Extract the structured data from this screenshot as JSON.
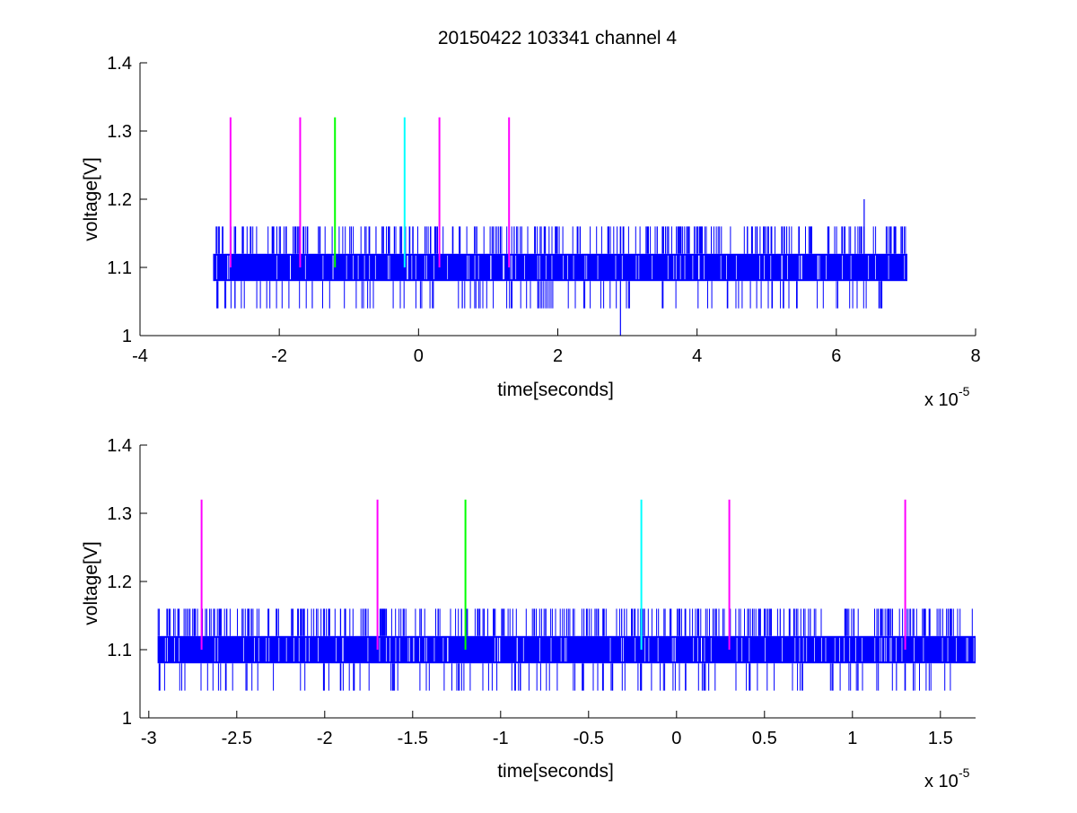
{
  "title": "20150422 103341 channel 4",
  "colors": {
    "signal": "#0000ff",
    "marker_magenta": "#ff00ff",
    "marker_green": "#00ff00",
    "marker_cyan": "#00ffff",
    "axis": "#000000"
  },
  "chart_data": [
    {
      "type": "line",
      "title": "20150422 103341 channel 4",
      "xlabel": "time[seconds]",
      "ylabel": "voltage[V]",
      "x_exponent_label": "x 10",
      "x_exponent": "-5",
      "xlim": [
        -4,
        8
      ],
      "ylim": [
        1,
        1.4
      ],
      "xticks": [
        -4,
        -2,
        0,
        2,
        4,
        6,
        8
      ],
      "xtick_labels": [
        "-4",
        "-2",
        "0",
        "2",
        "4",
        "6",
        "8"
      ],
      "yticks": [
        1,
        1.1,
        1.2,
        1.3,
        1.4
      ],
      "ytick_labels": [
        "1",
        "1.1",
        "1.2",
        "1.3",
        "1.4"
      ],
      "grid": false,
      "series": [
        {
          "color": "#0000ff",
          "x_range": [
            -2.95,
            7.02
          ],
          "levels": [
            1.04,
            1.08,
            1.12,
            1.16
          ],
          "dominant_band": [
            1.08,
            1.12
          ],
          "spikes": [
            {
              "x": 6.4,
              "y": 1.2
            },
            {
              "x": 2.9,
              "y": 1.0
            }
          ]
        }
      ],
      "markers": [
        {
          "x": -2.7,
          "y0": 1.1,
          "y1": 1.32,
          "color": "#ff00ff"
        },
        {
          "x": -1.7,
          "y0": 1.1,
          "y1": 1.32,
          "color": "#ff00ff"
        },
        {
          "x": -1.2,
          "y0": 1.1,
          "y1": 1.32,
          "color": "#00ff00"
        },
        {
          "x": -0.2,
          "y0": 1.1,
          "y1": 1.32,
          "color": "#00ffff"
        },
        {
          "x": 0.3,
          "y0": 1.1,
          "y1": 1.32,
          "color": "#ff00ff"
        },
        {
          "x": 1.3,
          "y0": 1.1,
          "y1": 1.32,
          "color": "#ff00ff"
        }
      ]
    },
    {
      "type": "line",
      "xlabel": "time[seconds]",
      "ylabel": "voltage[V]",
      "x_exponent_label": "x 10",
      "x_exponent": "-5",
      "xlim": [
        -3.05,
        1.7
      ],
      "ylim": [
        1,
        1.4
      ],
      "xticks": [
        -3,
        -2.5,
        -2,
        -1.5,
        -1,
        -0.5,
        0,
        0.5,
        1,
        1.5
      ],
      "xtick_labels": [
        "-3",
        "-2.5",
        "-2",
        "-1.5",
        "-1",
        "-0.5",
        "0",
        "0.5",
        "1",
        "1.5"
      ],
      "yticks": [
        1,
        1.1,
        1.2,
        1.3,
        1.4
      ],
      "ytick_labels": [
        "1",
        "1.1",
        "1.2",
        "1.3",
        "1.4"
      ],
      "grid": false,
      "series": [
        {
          "color": "#0000ff",
          "x_range": [
            -2.95,
            1.7
          ],
          "levels": [
            1.04,
            1.08,
            1.12,
            1.16
          ],
          "dominant_band": [
            1.08,
            1.12
          ],
          "spikes": []
        }
      ],
      "markers": [
        {
          "x": -2.7,
          "y0": 1.1,
          "y1": 1.32,
          "color": "#ff00ff"
        },
        {
          "x": -1.7,
          "y0": 1.1,
          "y1": 1.32,
          "color": "#ff00ff"
        },
        {
          "x": -1.2,
          "y0": 1.1,
          "y1": 1.32,
          "color": "#00ff00"
        },
        {
          "x": -0.2,
          "y0": 1.1,
          "y1": 1.32,
          "color": "#00ffff"
        },
        {
          "x": 0.3,
          "y0": 1.1,
          "y1": 1.32,
          "color": "#ff00ff"
        },
        {
          "x": 1.3,
          "y0": 1.1,
          "y1": 1.32,
          "color": "#ff00ff"
        }
      ]
    }
  ]
}
